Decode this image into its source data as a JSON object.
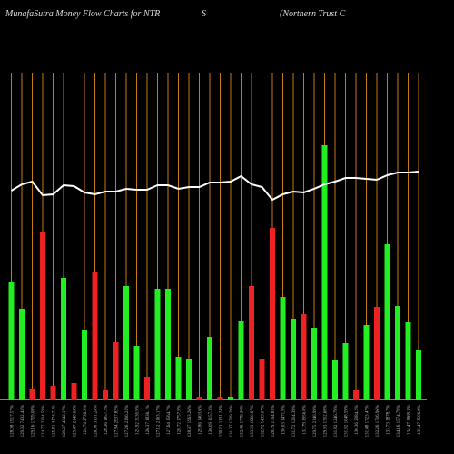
{
  "chart_data": {
    "type": "bar",
    "title": "MunafaSutra  Money Flow  Charts for NTR",
    "subtitle": "S",
    "company": "(Northern  Trust  C",
    "categories": [
      "128.08 1917.57%",
      "129.92 7432.43%",
      "129.16 1759.08%",
      "124.77 2304.59%",
      "125.81 4174.71%",
      "129.27 4342.17%",
      "125.47 2140.63%",
      "124.74 2736.9%",
      "126.08 3131.24%",
      "128.36 1857.2%",
      "127.84 2937.82%",
      "127.26 2196.23%",
      "125.92 3130.9%",
      "126.37 1836.1%",
      "127.12 2163.17%",
      "127.64 1564.7%",
      "128.72 1757.9%",
      "128.97 1963.26%",
      "129.86 1403.6%",
      "130.09 1157.3%",
      "130.21 1131.24%",
      "131.07 1709.29%",
      "132.46 1779.36%",
      "133.93 1960.97%",
      "132.72 1433.07%",
      "128.79 1794.83%",
      "130.03 1471.9%",
      "131.72 1204.39%",
      "132.79 1956.8%",
      "129.75 2146.99%",
      "129.93 1302.69%",
      "131.82 1246.79%",
      "131.92 1648.59%",
      "130.36 2084.2%",
      "131.48 1723.47%",
      "132.26 1706.96%",
      "133.73 1878.7%",
      "134.16 1574.79%",
      "134.47 1869.3%",
      "135.47 1506.8%"
    ],
    "values": [
      129,
      100,
      12,
      185,
      15,
      134,
      18,
      77,
      140,
      10,
      63,
      125,
      59,
      25,
      122,
      122,
      47,
      45,
      3,
      69,
      3,
      3,
      86,
      125,
      45,
      189,
      113,
      89,
      94,
      79,
      280,
      43,
      62,
      11,
      82,
      102,
      171,
      103,
      85,
      55
    ],
    "colors": [
      "#22ee22",
      "#22ee22",
      "#ee2222",
      "#ee2222",
      "#ee2222",
      "#22ee22",
      "#ee2222",
      "#22ee22",
      "#ee2222",
      "#ee2222",
      "#ee2222",
      "#22ee22",
      "#22ee22",
      "#ee2222",
      "#22ee22",
      "#22ee22",
      "#22ee22",
      "#22ee22",
      "#ee2222",
      "#22ee22",
      "#ee2222",
      "#22ee22",
      "#22ee22",
      "#ee2222",
      "#ee2222",
      "#ee2222",
      "#22ee22",
      "#22ee22",
      "#ee2222",
      "#22ee22",
      "#22ee22",
      "#22ee22",
      "#22ee22",
      "#ee2222",
      "#22ee22",
      "#ee2222",
      "#22ee22",
      "#22ee22",
      "#22ee22",
      "#22ee22"
    ],
    "line": [
      230,
      237,
      240,
      225,
      226,
      236,
      235,
      228,
      226,
      229,
      229,
      232,
      231,
      231,
      236,
      236,
      232,
      234,
      234,
      239,
      239,
      240,
      246,
      237,
      234,
      220,
      226,
      229,
      228,
      232,
      237,
      240,
      244,
      244,
      243,
      242,
      247,
      250,
      250,
      251
    ],
    "line_color": "#ffffff",
    "grid_color": "#c87814",
    "ylim": [
      0,
      360
    ]
  }
}
